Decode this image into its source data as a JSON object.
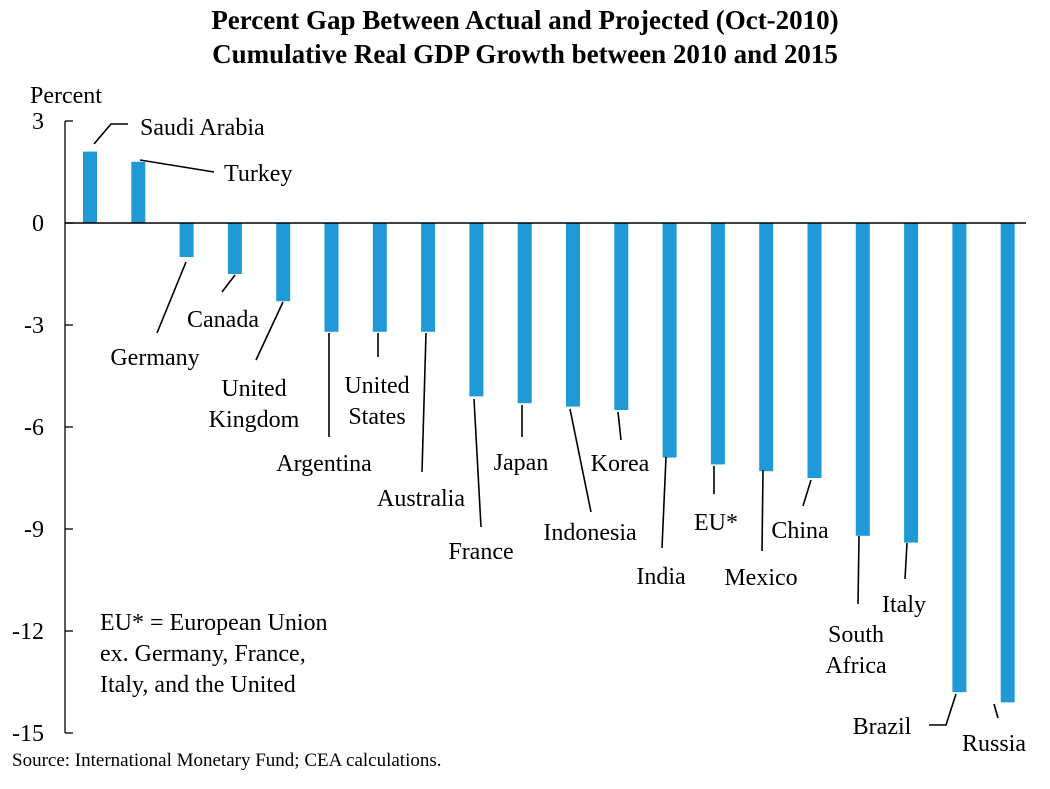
{
  "chart_data": {
    "type": "bar",
    "title": "Percent Gap Between Actual and Projected (Oct-2010)",
    "subtitle": "Cumulative Real GDP Growth between 2010 and 2015",
    "ylabel": "Percent",
    "xlabel": "",
    "ylim": [
      -15,
      3
    ],
    "yticks": [
      3,
      0,
      -3,
      -6,
      -9,
      -12,
      -15
    ],
    "categories": [
      "Saudi Arabia",
      "Turkey",
      "Germany",
      "Canada",
      "United Kingdom",
      "Argentina",
      "United States",
      "Australia",
      "France",
      "Japan",
      "Indonesia",
      "Korea",
      "India",
      "EU*",
      "Mexico",
      "China",
      "South Africa",
      "Italy",
      "Brazil",
      "Russia"
    ],
    "values": [
      2.1,
      1.8,
      -1.0,
      -1.5,
      -2.3,
      -3.2,
      -3.2,
      -3.2,
      -5.1,
      -5.3,
      -5.4,
      -5.5,
      -6.9,
      -7.1,
      -7.3,
      -7.5,
      -9.2,
      -9.4,
      -13.8,
      -14.1
    ],
    "series_color": "#1f9ad6",
    "label_lines": [
      [
        "Saudi Arabia"
      ],
      [
        "Turkey"
      ],
      [
        "Germany"
      ],
      [
        "Canada"
      ],
      [
        "United",
        "Kingdom"
      ],
      [
        "Argentina"
      ],
      [
        "United",
        "States"
      ],
      [
        "Australia"
      ],
      [
        "France"
      ],
      [
        "Japan"
      ],
      [
        "Indonesia"
      ],
      [
        "Korea"
      ],
      [
        "India"
      ],
      [
        "EU*"
      ],
      [
        "Mexico"
      ],
      [
        "China"
      ],
      [
        "South",
        "Africa"
      ],
      [
        "Italy"
      ],
      [
        "Brazil"
      ],
      [
        "Russia"
      ]
    ],
    "grid": false
  },
  "note": {
    "lines": [
      "EU* = European Union",
      "ex. Germany, France,",
      "Italy, and the United"
    ]
  },
  "source": "Source: International Monetary Fund; CEA calculations."
}
